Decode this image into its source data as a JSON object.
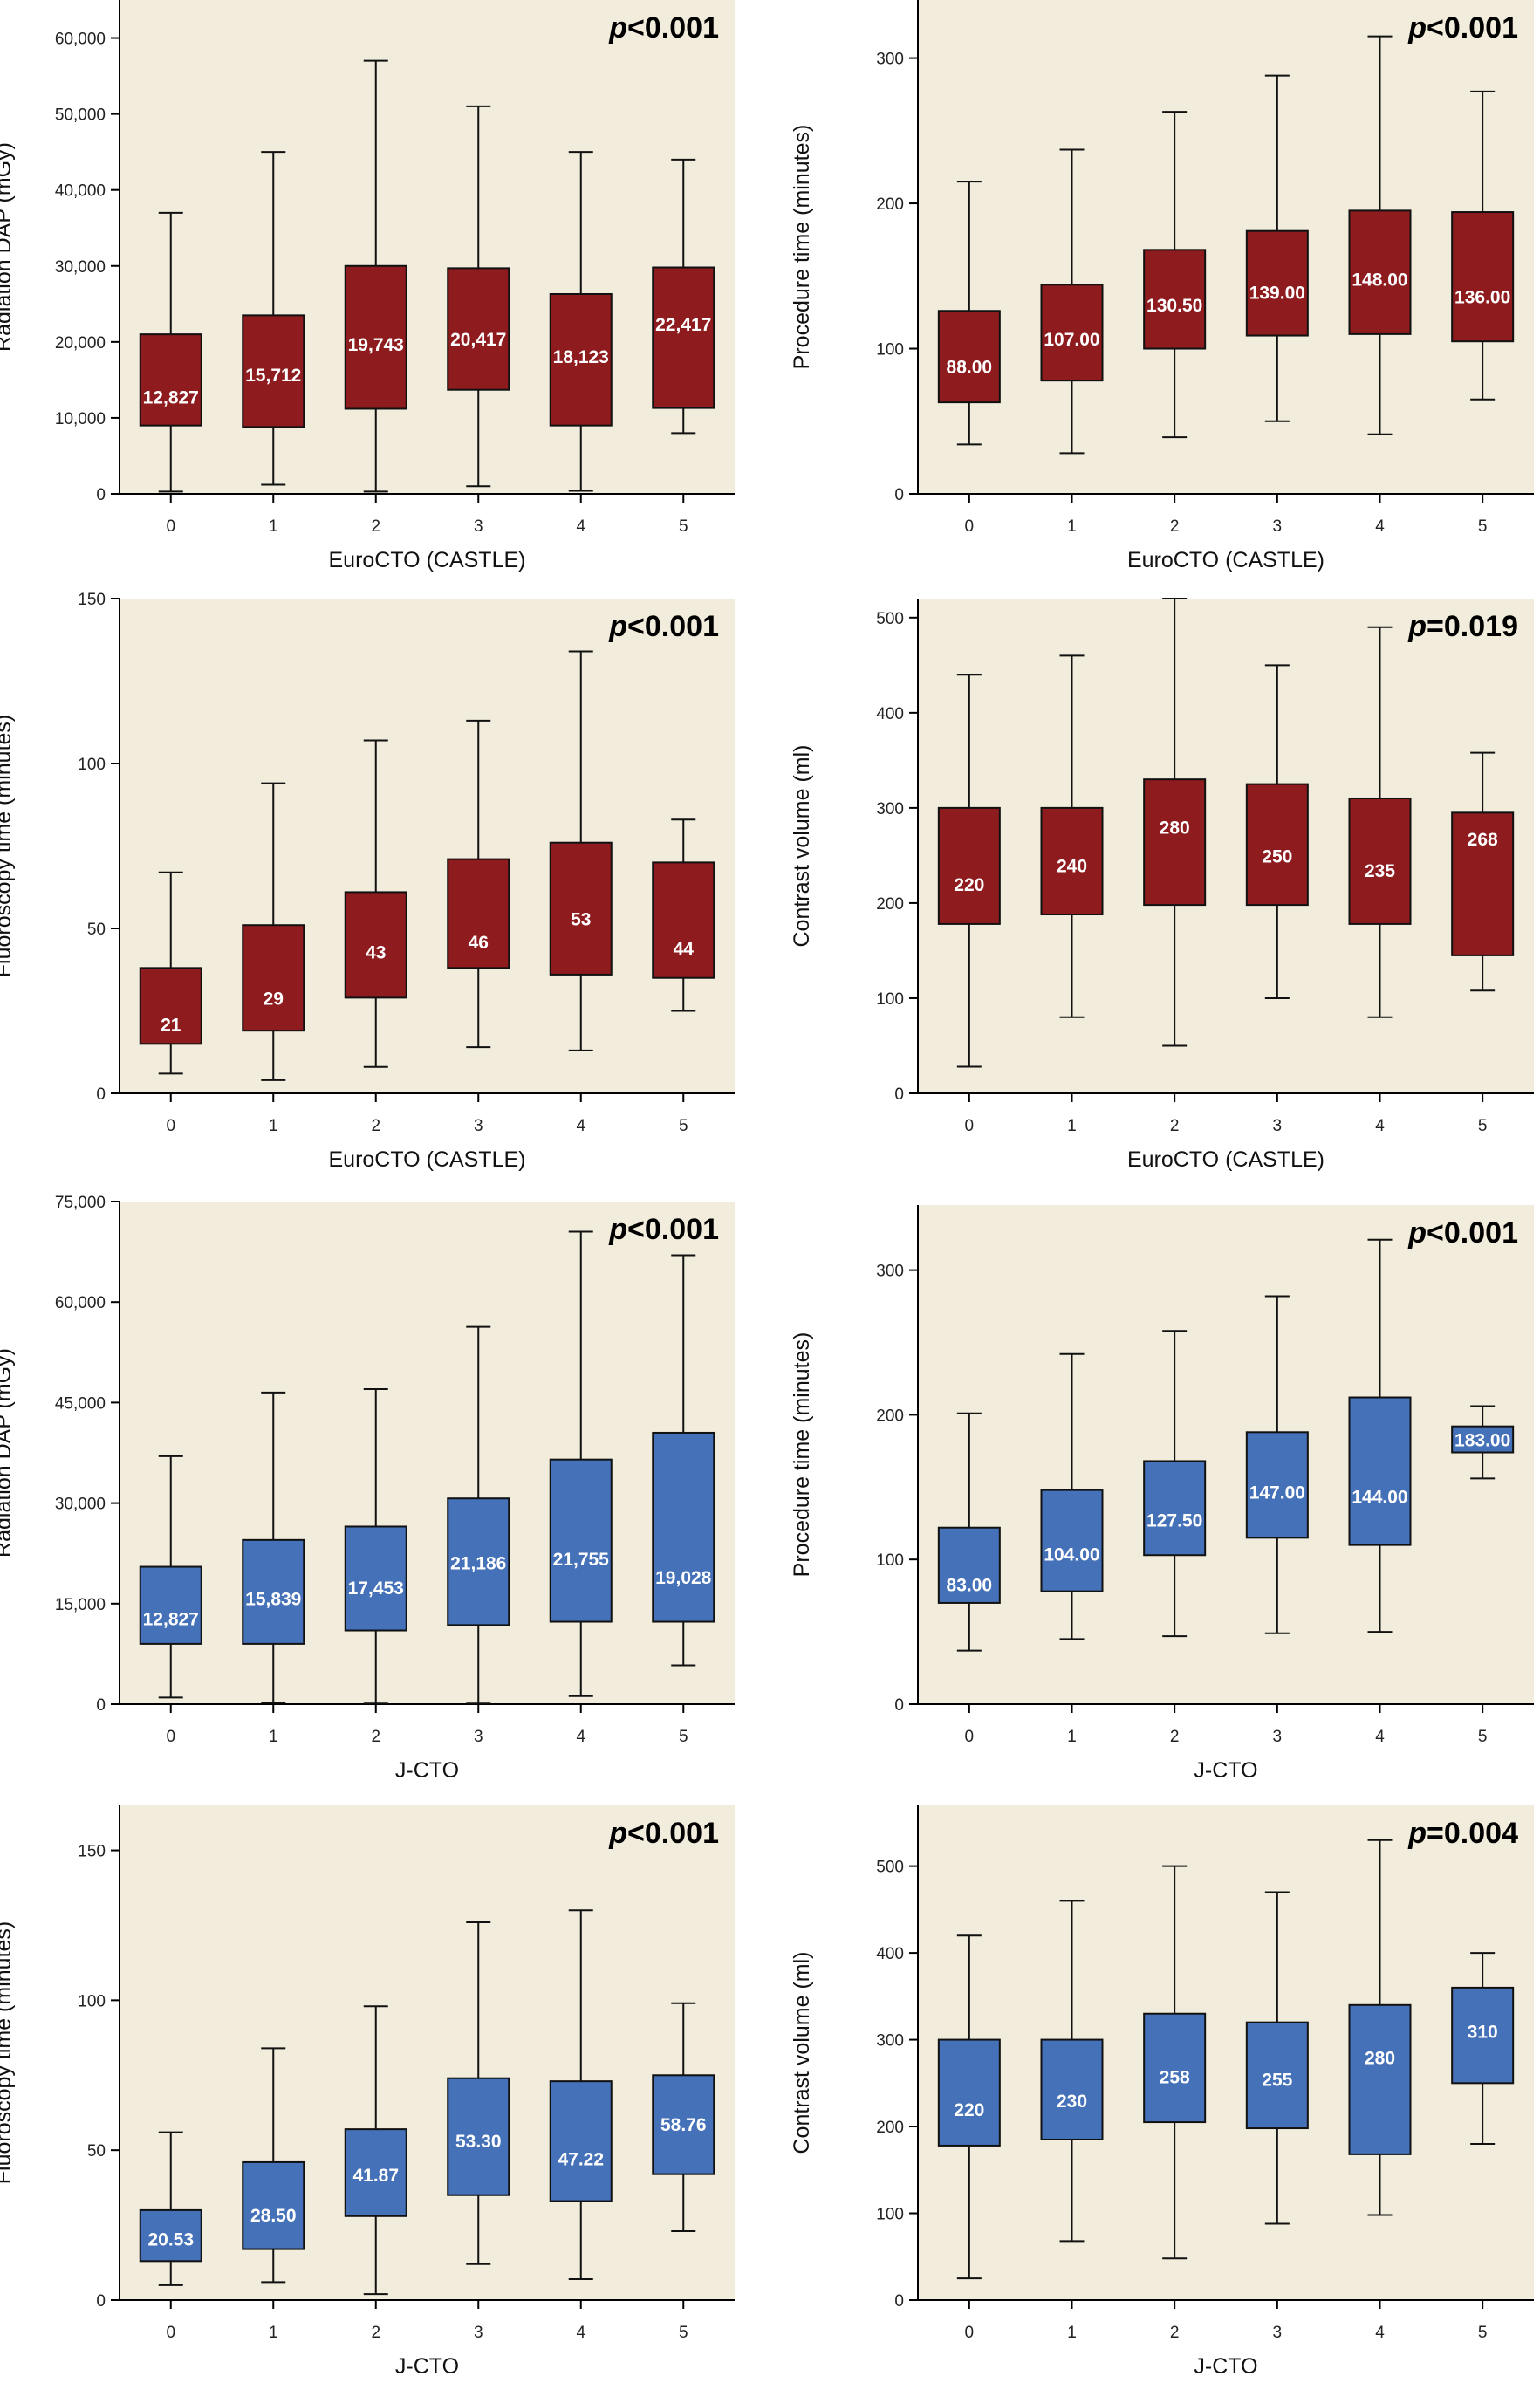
{
  "colors": {
    "panel_bg": "#F1ECDB",
    "red_box": "#8E1B1E",
    "blue_box": "#4471B8",
    "axis": "#000000"
  },
  "chart_data": [
    {
      "type": "box",
      "ylabel": "Radiation DAP (mGy)",
      "xlabel": "EuroCTO (CASTLE)",
      "pvalue": {
        "p": "p",
        "rest": "<0.001"
      },
      "ylim": [
        0,
        65000
      ],
      "yticks": [
        0,
        10000,
        20000,
        30000,
        40000,
        50000,
        60000
      ],
      "ytick_labels": [
        "0",
        "10,000",
        "20,000",
        "30,000",
        "40,000",
        "50,000",
        "60,000"
      ],
      "categories": [
        "0",
        "1",
        "2",
        "3",
        "4",
        "5"
      ],
      "color": "red",
      "boxes": [
        {
          "whisker_low": 300,
          "q1": 9000,
          "median": 12827,
          "q3": 21000,
          "whisker_high": 37000,
          "label": "12,827"
        },
        {
          "whisker_low": 1200,
          "q1": 8800,
          "median": 15712,
          "q3": 23500,
          "whisker_high": 45000,
          "label": "15,712"
        },
        {
          "whisker_low": 300,
          "q1": 11200,
          "median": 19743,
          "q3": 30000,
          "whisker_high": 57000,
          "label": "19,743"
        },
        {
          "whisker_low": 1000,
          "q1": 13700,
          "median": 20417,
          "q3": 29700,
          "whisker_high": 51000,
          "label": "20,417"
        },
        {
          "whisker_low": 400,
          "q1": 9000,
          "median": 18123,
          "q3": 26300,
          "whisker_high": 45000,
          "label": "18,123"
        },
        {
          "whisker_low": 8000,
          "q1": 11300,
          "median": 22417,
          "q3": 29800,
          "whisker_high": 44000,
          "label": "22,417"
        }
      ]
    },
    {
      "type": "box",
      "ylabel": "Procedure time (minutes)",
      "xlabel": "EuroCTO (CASTLE)",
      "pvalue": {
        "p": "p",
        "rest": "<0.001"
      },
      "ylim": [
        0,
        340
      ],
      "yticks": [
        0,
        100,
        200,
        300
      ],
      "ytick_labels": [
        "0",
        "100",
        "200",
        "300"
      ],
      "categories": [
        "0",
        "1",
        "2",
        "3",
        "4",
        "5"
      ],
      "color": "red",
      "boxes": [
        {
          "whisker_low": 34,
          "q1": 63,
          "median": 88,
          "q3": 126,
          "whisker_high": 215,
          "label": "88.00"
        },
        {
          "whisker_low": 28,
          "q1": 78,
          "median": 107,
          "q3": 144,
          "whisker_high": 237,
          "label": "107.00"
        },
        {
          "whisker_low": 39,
          "q1": 100,
          "median": 130.5,
          "q3": 168,
          "whisker_high": 263,
          "label": "130.50"
        },
        {
          "whisker_low": 50,
          "q1": 109,
          "median": 139,
          "q3": 181,
          "whisker_high": 288,
          "label": "139.00"
        },
        {
          "whisker_low": 41,
          "q1": 110,
          "median": 148,
          "q3": 195,
          "whisker_high": 315,
          "label": "148.00"
        },
        {
          "whisker_low": 65,
          "q1": 105,
          "median": 136,
          "q3": 194,
          "whisker_high": 277,
          "label": "136.00"
        }
      ]
    },
    {
      "type": "box",
      "ylabel": "Fluoroscopy time (minutes)",
      "xlabel": "EuroCTO (CASTLE)",
      "pvalue": {
        "p": "p",
        "rest": "<0.001"
      },
      "ylim": [
        0,
        150
      ],
      "yticks": [
        0,
        50,
        100,
        150
      ],
      "ytick_labels": [
        "0",
        "50",
        "100",
        "150"
      ],
      "categories": [
        "0",
        "1",
        "2",
        "3",
        "4",
        "5"
      ],
      "color": "red",
      "boxes": [
        {
          "whisker_low": 6,
          "q1": 15,
          "median": 21,
          "q3": 38,
          "whisker_high": 67,
          "label": "21"
        },
        {
          "whisker_low": 4,
          "q1": 19,
          "median": 29,
          "q3": 51,
          "whisker_high": 94,
          "label": "29"
        },
        {
          "whisker_low": 8,
          "q1": 29,
          "median": 43,
          "q3": 61,
          "whisker_high": 107,
          "label": "43"
        },
        {
          "whisker_low": 14,
          "q1": 38,
          "median": 46,
          "q3": 71,
          "whisker_high": 113,
          "label": "46"
        },
        {
          "whisker_low": 13,
          "q1": 36,
          "median": 53,
          "q3": 76,
          "whisker_high": 134,
          "label": "53"
        },
        {
          "whisker_low": 25,
          "q1": 35,
          "median": 44,
          "q3": 70,
          "whisker_high": 83,
          "label": "44"
        }
      ]
    },
    {
      "type": "box",
      "ylabel": "Contrast volume (ml)",
      "xlabel": "EuroCTO (CASTLE)",
      "pvalue": {
        "p": "p",
        "rest": "=0.019"
      },
      "ylim": [
        0,
        520
      ],
      "yticks": [
        0,
        100,
        200,
        300,
        400,
        500
      ],
      "ytick_labels": [
        "0",
        "100",
        "200",
        "300",
        "400",
        "500"
      ],
      "categories": [
        "0",
        "1",
        "2",
        "3",
        "4",
        "5"
      ],
      "color": "red",
      "boxes": [
        {
          "whisker_low": 28,
          "q1": 178,
          "median": 220,
          "q3": 300,
          "whisker_high": 440,
          "label": "220"
        },
        {
          "whisker_low": 80,
          "q1": 188,
          "median": 240,
          "q3": 300,
          "whisker_high": 460,
          "label": "240"
        },
        {
          "whisker_low": 50,
          "q1": 198,
          "median": 280,
          "q3": 330,
          "whisker_high": 520,
          "label": "280"
        },
        {
          "whisker_low": 100,
          "q1": 198,
          "median": 250,
          "q3": 325,
          "whisker_high": 450,
          "label": "250"
        },
        {
          "whisker_low": 80,
          "q1": 178,
          "median": 235,
          "q3": 310,
          "whisker_high": 490,
          "label": "235"
        },
        {
          "whisker_low": 108,
          "q1": 145,
          "median": 268,
          "q3": 295,
          "whisker_high": 358,
          "label": "268"
        }
      ]
    },
    {
      "type": "box",
      "ylabel": "Radiation DAP (mGy)",
      "xlabel": "J-CTO",
      "pvalue": {
        "p": "p",
        "rest": "<0.001"
      },
      "ylim": [
        0,
        75000
      ],
      "yticks": [
        0,
        15000,
        30000,
        45000,
        60000,
        75000
      ],
      "ytick_labels": [
        "0",
        "15,000",
        "30,000",
        "45,000",
        "60,000",
        "75,000"
      ],
      "categories": [
        "0",
        "1",
        "2",
        "3",
        "4",
        "5"
      ],
      "color": "blue",
      "boxes": [
        {
          "whisker_low": 1000,
          "q1": 9000,
          "median": 12827,
          "q3": 20500,
          "whisker_high": 37000,
          "label": "12,827"
        },
        {
          "whisker_low": 200,
          "q1": 9000,
          "median": 15839,
          "q3": 24500,
          "whisker_high": 46500,
          "label": "15,839"
        },
        {
          "whisker_low": 100,
          "q1": 11000,
          "median": 17453,
          "q3": 26500,
          "whisker_high": 47000,
          "label": "17,453"
        },
        {
          "whisker_low": 100,
          "q1": 11800,
          "median": 21186,
          "q3": 30700,
          "whisker_high": 56300,
          "label": "21,186"
        },
        {
          "whisker_low": 1200,
          "q1": 12300,
          "median": 21755,
          "q3": 36500,
          "whisker_high": 70500,
          "label": "21,755"
        },
        {
          "whisker_low": 5800,
          "q1": 12300,
          "median": 19028,
          "q3": 40500,
          "whisker_high": 67000,
          "label": "19,028"
        }
      ]
    },
    {
      "type": "box",
      "ylabel": "Procedure time (minutes)",
      "xlabel": "J-CTO",
      "pvalue": {
        "p": "p",
        "rest": "<0.001"
      },
      "ylim": [
        0,
        345
      ],
      "yticks": [
        0,
        100,
        200,
        300
      ],
      "ytick_labels": [
        "0",
        "100",
        "200",
        "300"
      ],
      "categories": [
        "0",
        "1",
        "2",
        "3",
        "4",
        "5"
      ],
      "color": "blue",
      "boxes": [
        {
          "whisker_low": 37,
          "q1": 70,
          "median": 83,
          "q3": 122,
          "whisker_high": 201,
          "label": "83.00"
        },
        {
          "whisker_low": 45,
          "q1": 78,
          "median": 104,
          "q3": 148,
          "whisker_high": 242,
          "label": "104.00"
        },
        {
          "whisker_low": 47,
          "q1": 103,
          "median": 127.5,
          "q3": 168,
          "whisker_high": 258,
          "label": "127.50"
        },
        {
          "whisker_low": 49,
          "q1": 115,
          "median": 147,
          "q3": 188,
          "whisker_high": 282,
          "label": "147.00"
        },
        {
          "whisker_low": 50,
          "q1": 110,
          "median": 144,
          "q3": 212,
          "whisker_high": 321,
          "label": "144.00"
        },
        {
          "whisker_low": 156,
          "q1": 174,
          "median": 183,
          "q3": 192,
          "whisker_high": 206,
          "label": "183.00"
        }
      ]
    },
    {
      "type": "box",
      "ylabel": "Fluoroscopy time (minutes)",
      "xlabel": "J-CTO",
      "pvalue": {
        "p": "p",
        "rest": "<0.001"
      },
      "ylim": [
        0,
        165
      ],
      "yticks": [
        0,
        50,
        100,
        150
      ],
      "ytick_labels": [
        "0",
        "50",
        "100",
        "150"
      ],
      "categories": [
        "0",
        "1",
        "2",
        "3",
        "4",
        "5"
      ],
      "color": "blue",
      "boxes": [
        {
          "whisker_low": 5,
          "q1": 13,
          "median": 20.53,
          "q3": 30,
          "whisker_high": 56,
          "label": "20.53"
        },
        {
          "whisker_low": 6,
          "q1": 17,
          "median": 28.5,
          "q3": 46,
          "whisker_high": 84,
          "label": "28.50"
        },
        {
          "whisker_low": 2,
          "q1": 28,
          "median": 41.87,
          "q3": 57,
          "whisker_high": 98,
          "label": "41.87"
        },
        {
          "whisker_low": 12,
          "q1": 35,
          "median": 53.3,
          "q3": 74,
          "whisker_high": 126,
          "label": "53.30"
        },
        {
          "whisker_low": 7,
          "q1": 33,
          "median": 47.22,
          "q3": 73,
          "whisker_high": 130,
          "label": "47.22"
        },
        {
          "whisker_low": 23,
          "q1": 42,
          "median": 58.76,
          "q3": 75,
          "whisker_high": 99,
          "label": "58.76"
        }
      ]
    },
    {
      "type": "box",
      "ylabel": "Contrast volume (ml)",
      "xlabel": "J-CTO",
      "pvalue": {
        "p": "p",
        "rest": "=0.004"
      },
      "ylim": [
        0,
        570
      ],
      "yticks": [
        0,
        100,
        200,
        300,
        400,
        500
      ],
      "ytick_labels": [
        "0",
        "100",
        "200",
        "300",
        "400",
        "500"
      ],
      "categories": [
        "0",
        "1",
        "2",
        "3",
        "4",
        "5"
      ],
      "color": "blue",
      "boxes": [
        {
          "whisker_low": 25,
          "q1": 178,
          "median": 220,
          "q3": 300,
          "whisker_high": 420,
          "label": "220"
        },
        {
          "whisker_low": 68,
          "q1": 185,
          "median": 230,
          "q3": 300,
          "whisker_high": 460,
          "label": "230"
        },
        {
          "whisker_low": 48,
          "q1": 205,
          "median": 258,
          "q3": 330,
          "whisker_high": 500,
          "label": "258"
        },
        {
          "whisker_low": 88,
          "q1": 198,
          "median": 255,
          "q3": 320,
          "whisker_high": 470,
          "label": "255"
        },
        {
          "whisker_low": 98,
          "q1": 168,
          "median": 280,
          "q3": 340,
          "whisker_high": 530,
          "label": "280"
        },
        {
          "whisker_low": 180,
          "q1": 250,
          "median": 310,
          "q3": 360,
          "whisker_high": 400,
          "label": "310"
        }
      ]
    }
  ]
}
